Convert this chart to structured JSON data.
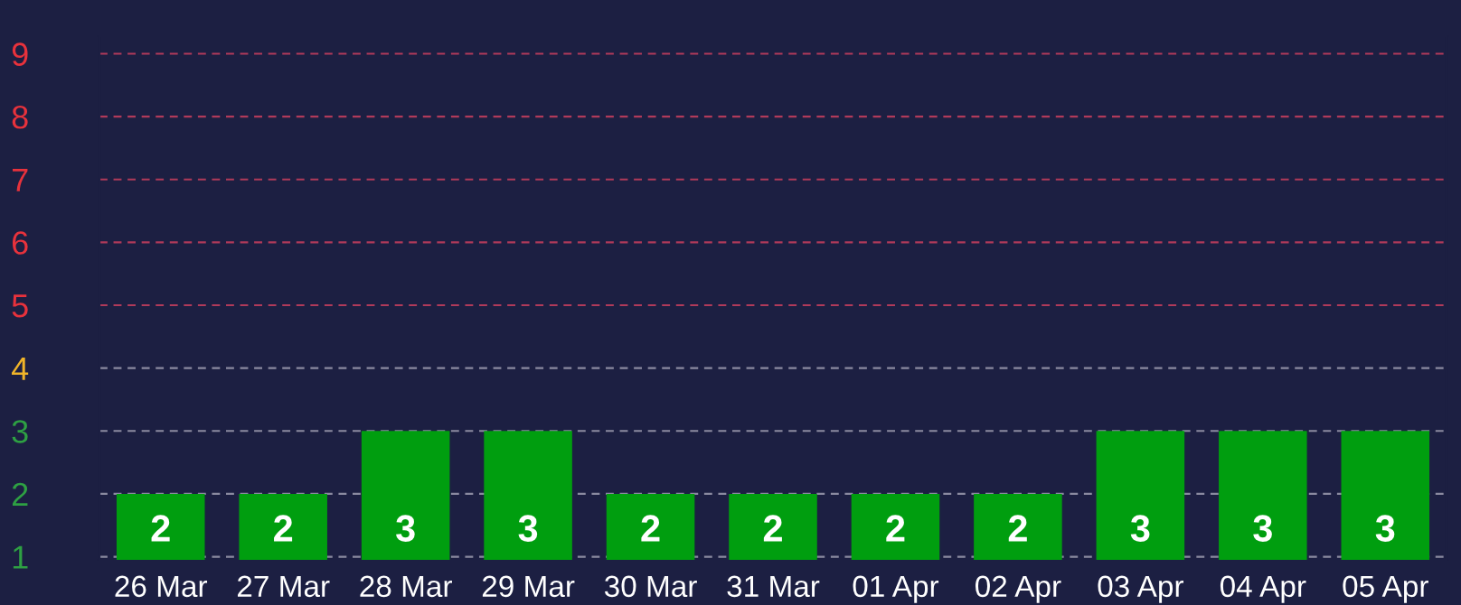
{
  "chart_data": {
    "type": "bar",
    "categories": [
      "26 Mar",
      "27 Mar",
      "28 Mar",
      "29 Mar",
      "30 Mar",
      "31 Mar",
      "01 Apr",
      "02 Apr",
      "03 Apr",
      "04 Apr",
      "05 Apr"
    ],
    "values": [
      2,
      2,
      3,
      3,
      2,
      2,
      2,
      2,
      3,
      3,
      3
    ],
    "color": "#009e0f",
    "data_labels": true,
    "ylim": [
      0.95,
      9.28
    ],
    "yticks": [
      1,
      2,
      3,
      4,
      5,
      6,
      7,
      8,
      9
    ],
    "grid": "y"
  }
}
